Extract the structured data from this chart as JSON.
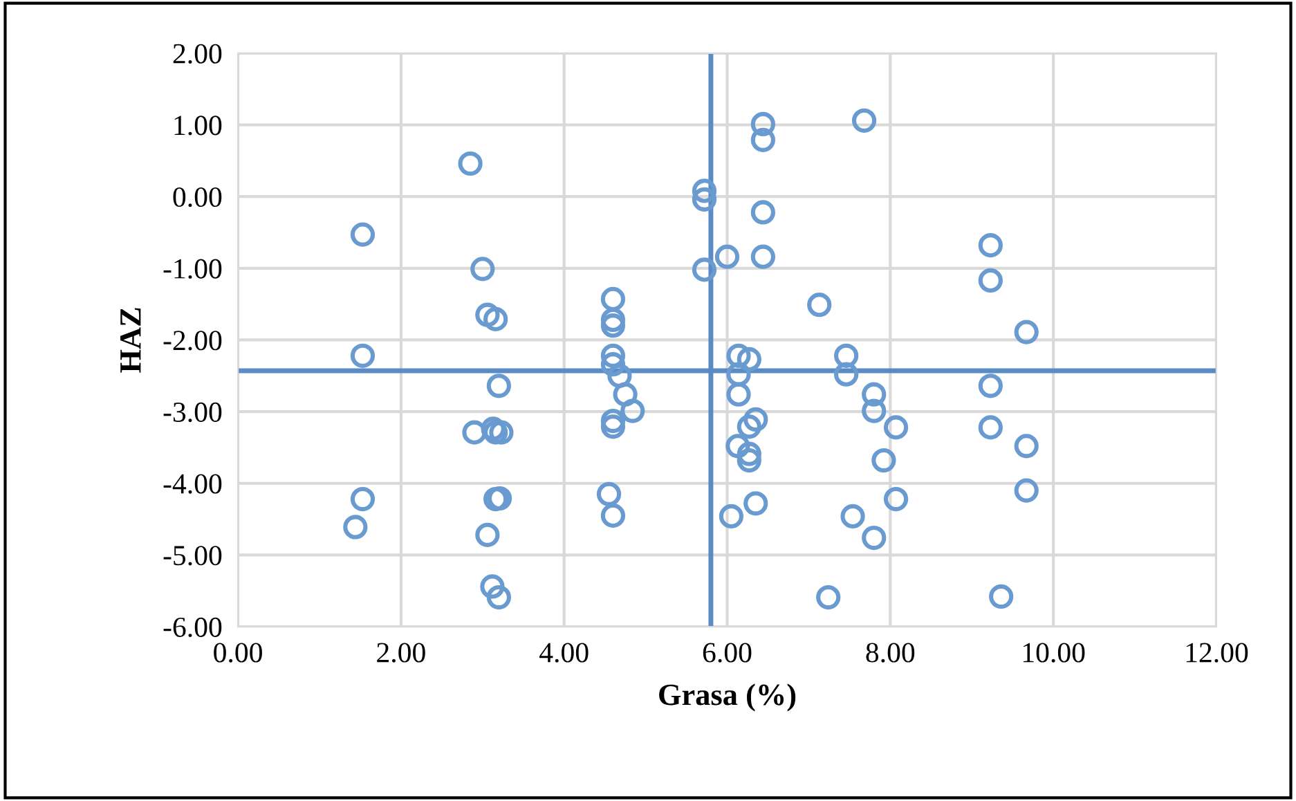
{
  "chart_data": {
    "type": "scatter",
    "xlabel": "Grasa (%)",
    "ylabel": "HAZ",
    "xlim": [
      0,
      12
    ],
    "ylim": [
      -6,
      2
    ],
    "xticks": [
      {
        "value": 0,
        "label": "0.00"
      },
      {
        "value": 2,
        "label": "2.00"
      },
      {
        "value": 4,
        "label": "4.00"
      },
      {
        "value": 6,
        "label": "6.00"
      },
      {
        "value": 8,
        "label": "8.00"
      },
      {
        "value": 10,
        "label": "10.00"
      },
      {
        "value": 12,
        "label": "12.00"
      }
    ],
    "yticks": [
      {
        "value": -6,
        "label": "-6.00"
      },
      {
        "value": -5,
        "label": "-5.00"
      },
      {
        "value": -4,
        "label": "-4.00"
      },
      {
        "value": -3,
        "label": "-3.00"
      },
      {
        "value": -2,
        "label": "-2.00"
      },
      {
        "value": -1,
        "label": "-1.00"
      },
      {
        "value": 0,
        "label": "0.00"
      },
      {
        "value": 1,
        "label": "1.00"
      },
      {
        "value": 2,
        "label": "2.00"
      }
    ],
    "grid": true,
    "marker": "circle",
    "ref_lines": [
      {
        "axis": "x",
        "value": 5.8,
        "color": "#5b8bc4"
      },
      {
        "axis": "y",
        "value": -2.43,
        "color": "#5b8bc4"
      }
    ],
    "series": [
      {
        "color": "#6a9bd0",
        "x": [
          1.53,
          1.53,
          1.53,
          1.44,
          2.85,
          3.0,
          3.06,
          3.16,
          3.2,
          2.9,
          3.13,
          3.16,
          3.23,
          3.16,
          3.21,
          3.06,
          3.12,
          3.2,
          4.6,
          4.6,
          4.6,
          4.6,
          4.6,
          4.68,
          4.75,
          4.84,
          4.6,
          4.6,
          4.55,
          4.6,
          5.72,
          5.72,
          5.72,
          6.0,
          6.44,
          6.44,
          6.44,
          6.44,
          7.68,
          7.13,
          6.14,
          6.27,
          6.14,
          6.14,
          6.35,
          6.27,
          6.13,
          6.27,
          6.27,
          6.35,
          6.05,
          7.46,
          7.46,
          7.8,
          7.8,
          8.07,
          7.92,
          8.07,
          7.54,
          7.8,
          7.24,
          9.23,
          9.23,
          9.67,
          9.23,
          9.23,
          9.67,
          9.67,
          9.36
        ],
        "values": [
          -0.53,
          -2.22,
          -4.22,
          -4.61,
          0.46,
          -1.01,
          -1.65,
          -1.71,
          -2.64,
          -3.29,
          -3.24,
          -3.29,
          -3.29,
          -4.22,
          -4.21,
          -4.72,
          -5.44,
          -5.59,
          -1.43,
          -1.72,
          -1.8,
          -2.22,
          -2.34,
          -2.5,
          -2.76,
          -2.99,
          -3.13,
          -3.21,
          -4.15,
          -4.45,
          0.08,
          -0.04,
          -1.02,
          -0.84,
          1.01,
          0.79,
          -0.22,
          -0.84,
          1.06,
          -1.51,
          -2.22,
          -2.27,
          -2.48,
          -2.76,
          -3.11,
          -3.21,
          -3.48,
          -3.59,
          -3.68,
          -4.28,
          -4.46,
          -2.22,
          -2.48,
          -2.76,
          -2.99,
          -3.22,
          -3.68,
          -4.22,
          -4.46,
          -4.76,
          -5.59,
          -0.68,
          -1.17,
          -1.89,
          -2.64,
          -3.22,
          -3.48,
          -4.1,
          -5.58
        ]
      }
    ]
  }
}
